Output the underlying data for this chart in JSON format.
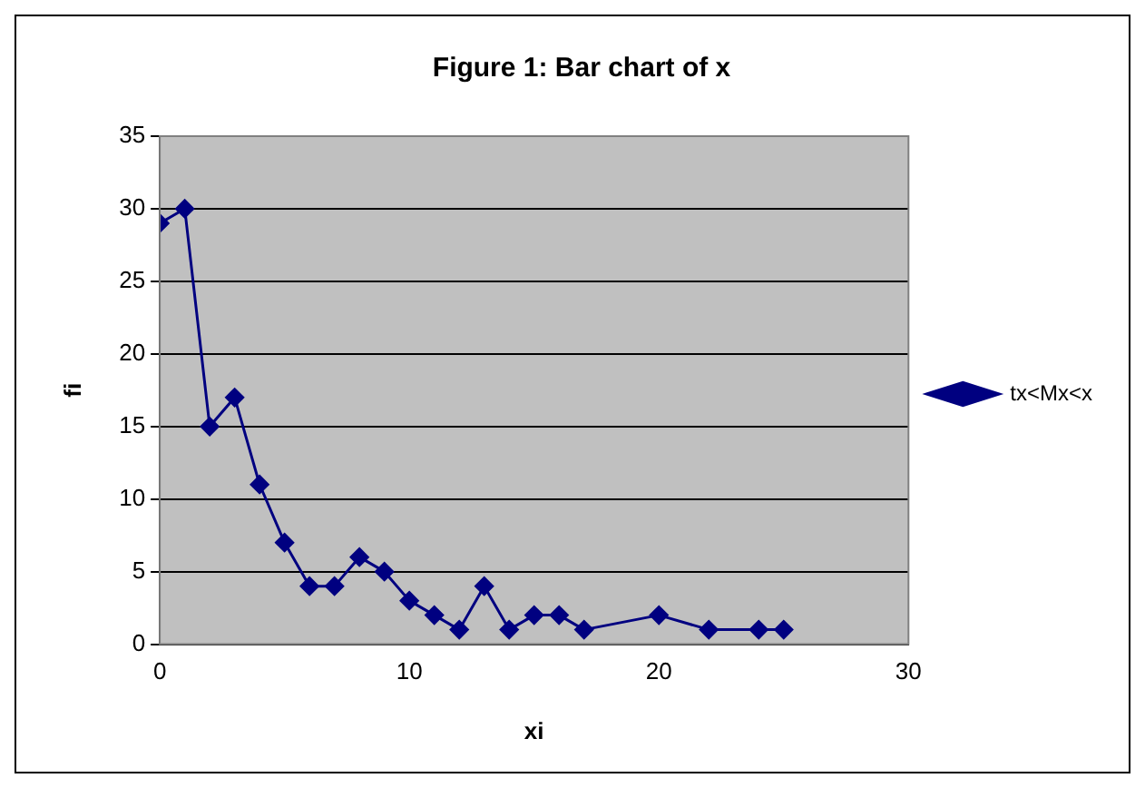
{
  "chart_data": {
    "type": "line",
    "title": "Figure 1: Bar chart of x",
    "xlabel": "xi",
    "ylabel": "fi",
    "x": [
      0,
      1,
      2,
      3,
      4,
      5,
      6,
      7,
      8,
      9,
      10,
      11,
      12,
      13,
      14,
      15,
      16,
      17,
      20,
      22,
      24,
      25
    ],
    "series": [
      {
        "name": "tx<Mx<x",
        "color": "#000080",
        "values": [
          29,
          30,
          15,
          17,
          11,
          7,
          4,
          4,
          6,
          5,
          3,
          2,
          1,
          4,
          1,
          2,
          2,
          1,
          2,
          1,
          1,
          1
        ]
      }
    ],
    "xlim": [
      0,
      30
    ],
    "xticks": [
      0,
      10,
      20,
      30
    ],
    "ylim": [
      0,
      35
    ],
    "yticks": [
      0,
      5,
      10,
      15,
      20,
      25,
      30,
      35
    ],
    "grid": "y",
    "legend": "right",
    "marker": "diamond",
    "line_style": "solid"
  }
}
